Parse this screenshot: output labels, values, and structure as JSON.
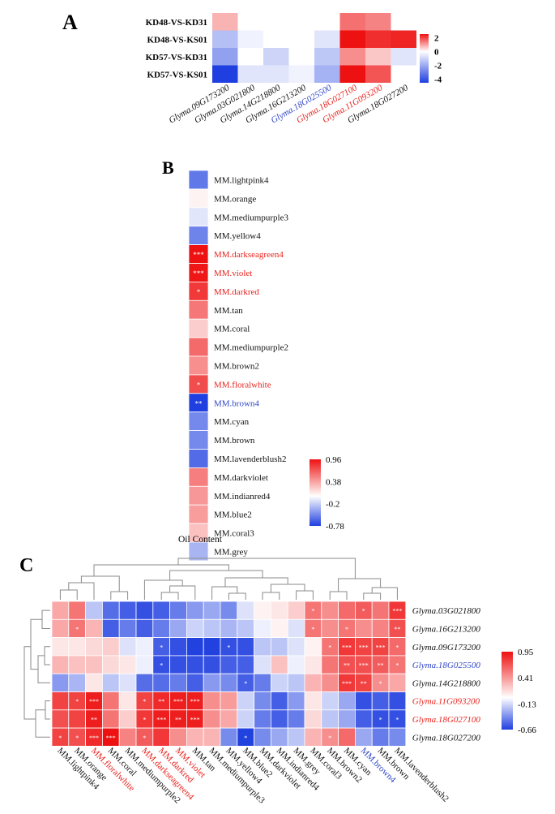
{
  "palette": {
    "low": "#1f3fe0",
    "mid": "#ffffff",
    "high": "#ee1111",
    "text_black": "#111111",
    "text_red": "#e8231d",
    "text_blue": "#2f46c8",
    "sig_mark": "#ffffff",
    "tree": "#8a8a8a",
    "grid": "#ffffff"
  },
  "panel_a": {
    "letter": "A",
    "rows": [
      "KD48-VS-KD31",
      "KD48-VS-KS01",
      "KD57-VS-KD31",
      "KD57-VS-KS01"
    ],
    "cols": [
      {
        "label": "Glyma.09G173200",
        "color": "black"
      },
      {
        "label": "Glyma.03G021800",
        "color": "black"
      },
      {
        "label": "Glyma.14G218800",
        "color": "black"
      },
      {
        "label": "Glyma.16G213200",
        "color": "black"
      },
      {
        "label": "Glyma.18G025500",
        "color": "blue"
      },
      {
        "label": "Glyma.18G027100",
        "color": "red"
      },
      {
        "label": "Glyma.11G093200",
        "color": "red"
      },
      {
        "label": "Glyma.18G027200",
        "color": "black"
      }
    ],
    "values": [
      [
        0.8,
        0.0,
        0.0,
        0.0,
        0.0,
        1.5,
        1.3,
        0.0
      ],
      [
        -1.5,
        -0.3,
        0.0,
        0.0,
        -0.6,
        2.7,
        2.2,
        2.3
      ],
      [
        -2.2,
        0.0,
        -1.0,
        0.0,
        -1.3,
        1.2,
        0.6,
        -0.6
      ],
      [
        -4.5,
        -0.6,
        -0.6,
        -0.3,
        -1.8,
        2.8,
        1.8,
        0.0
      ]
    ],
    "scale": {
      "min": -4.5,
      "max": 2.5,
      "ticks": [
        "2",
        "0",
        "-2",
        "-4"
      ],
      "tick_values": [
        2,
        0,
        -2,
        -4
      ]
    }
  },
  "panel_b": {
    "letter": "B",
    "rows": [
      {
        "label": "MM.lightpink4",
        "value": -0.55,
        "sig": "",
        "color": "black"
      },
      {
        "label": "MM.orange",
        "value": 0.05,
        "sig": "",
        "color": "black"
      },
      {
        "label": "MM.mediumpurple3",
        "value": -0.1,
        "sig": "",
        "color": "black"
      },
      {
        "label": "MM.yellow4",
        "value": -0.5,
        "sig": "",
        "color": "black"
      },
      {
        "label": "MM.darkseagreen4",
        "value": 0.96,
        "sig": "***",
        "color": "red"
      },
      {
        "label": "MM.violet",
        "value": 0.94,
        "sig": "***",
        "color": "red"
      },
      {
        "label": "MM.darkred",
        "value": 0.8,
        "sig": "*",
        "color": "red"
      },
      {
        "label": "MM.tan",
        "value": 0.55,
        "sig": "",
        "color": "black"
      },
      {
        "label": "MM.coral",
        "value": 0.2,
        "sig": "",
        "color": "black"
      },
      {
        "label": "MM.mediumpurple2",
        "value": 0.6,
        "sig": "",
        "color": "black"
      },
      {
        "label": "MM.brown2",
        "value": 0.45,
        "sig": "",
        "color": "black"
      },
      {
        "label": "MM.floralwhite",
        "value": 0.72,
        "sig": "*",
        "color": "red"
      },
      {
        "label": "MM.brown4",
        "value": -0.78,
        "sig": "**",
        "color": "blue"
      },
      {
        "label": "MM.cyan",
        "value": -0.48,
        "sig": "",
        "color": "black"
      },
      {
        "label": "MM.brown",
        "value": -0.48,
        "sig": "",
        "color": "black"
      },
      {
        "label": "MM.lavenderblush2",
        "value": -0.6,
        "sig": "",
        "color": "black"
      },
      {
        "label": "MM.darkviolet",
        "value": 0.52,
        "sig": "",
        "color": "black"
      },
      {
        "label": "MM.indianred4",
        "value": 0.42,
        "sig": "",
        "color": "black"
      },
      {
        "label": "MM.blue2",
        "value": 0.4,
        "sig": "",
        "color": "black"
      },
      {
        "label": "MM.coral3",
        "value": 0.25,
        "sig": "",
        "color": "black"
      },
      {
        "label": "MM.grey",
        "value": -0.3,
        "sig": "",
        "color": "black"
      }
    ],
    "xlabel": "Oil Content",
    "scale": {
      "min": -0.78,
      "max": 0.96,
      "ticks": [
        "0.96",
        "0.38",
        "-0.2",
        "-0.78"
      ],
      "tick_values": [
        0.96,
        0.38,
        -0.2,
        -0.78
      ]
    }
  },
  "panel_c": {
    "letter": "C",
    "rows": [
      {
        "label": "Glyma.03G021800",
        "color": "black"
      },
      {
        "label": "Glyma.16G213200",
        "color": "black"
      },
      {
        "label": "Glyma.09G173200",
        "color": "black"
      },
      {
        "label": "Glyma.18G025500",
        "color": "blue"
      },
      {
        "label": "Glyma.14G218800",
        "color": "black"
      },
      {
        "label": "Glyma.11G093200",
        "color": "red"
      },
      {
        "label": "Glyma.18G027100",
        "color": "red"
      },
      {
        "label": "Glyma.18G027200",
        "color": "black"
      }
    ],
    "cols": [
      {
        "label": "MM.lightpink4",
        "color": "black"
      },
      {
        "label": "MM.orange",
        "color": "black"
      },
      {
        "label": "MM.floralwhite",
        "color": "red"
      },
      {
        "label": "MM.coral",
        "color": "black"
      },
      {
        "label": "MM.mediumpurple2",
        "color": "black"
      },
      {
        "label": "MM.darkseagreen4",
        "color": "red"
      },
      {
        "label": "MM.darkred",
        "color": "red"
      },
      {
        "label": "MM.violet",
        "color": "red"
      },
      {
        "label": "MM.tan",
        "color": "black"
      },
      {
        "label": "MM.mediumpurple3",
        "color": "black"
      },
      {
        "label": "MM.yellow4",
        "color": "black"
      },
      {
        "label": "MM.blue2",
        "color": "black"
      },
      {
        "label": "MM.darkviolet",
        "color": "black"
      },
      {
        "label": "MM.indianred4",
        "color": "black"
      },
      {
        "label": "MM.grey",
        "color": "black"
      },
      {
        "label": "MM.coral3",
        "color": "black"
      },
      {
        "label": "MM.brown2",
        "color": "black"
      },
      {
        "label": "MM.cyan",
        "color": "black"
      },
      {
        "label": "MM.brown4",
        "color": "blue"
      },
      {
        "label": "MM.brown",
        "color": "black"
      },
      {
        "label": "MM.lavenderblush2",
        "color": "black"
      }
    ],
    "values": [
      [
        0.35,
        0.55,
        -0.2,
        -0.5,
        -0.55,
        -0.6,
        -0.55,
        -0.45,
        -0.35,
        -0.3,
        -0.4,
        -0.1,
        0.05,
        0.1,
        0.2,
        0.55,
        0.45,
        0.6,
        0.65,
        0.55,
        0.8
      ],
      [
        0.35,
        0.55,
        0.3,
        -0.55,
        -0.45,
        -0.55,
        -0.45,
        -0.3,
        -0.15,
        -0.2,
        -0.25,
        -0.2,
        -0.05,
        0.05,
        -0.1,
        0.55,
        0.45,
        0.55,
        0.45,
        0.5,
        0.7
      ],
      [
        0.1,
        0.1,
        0.15,
        0.2,
        -0.1,
        -0.05,
        -0.55,
        -0.6,
        -0.65,
        -0.65,
        -0.6,
        -0.6,
        -0.2,
        -0.2,
        -0.1,
        0.05,
        0.55,
        0.8,
        0.75,
        0.75,
        0.6
      ],
      [
        0.3,
        0.25,
        0.25,
        0.15,
        0.1,
        -0.05,
        -0.6,
        -0.6,
        -0.6,
        -0.6,
        -0.55,
        -0.55,
        -0.1,
        0.25,
        -0.05,
        0.1,
        0.55,
        0.7,
        0.7,
        0.65,
        0.55
      ],
      [
        -0.35,
        -0.25,
        0.1,
        -0.2,
        -0.1,
        -0.5,
        -0.5,
        -0.45,
        -0.55,
        -0.35,
        -0.4,
        -0.55,
        -0.45,
        -0.15,
        -0.2,
        0.3,
        0.45,
        0.8,
        0.75,
        0.45,
        0.35
      ],
      [
        0.75,
        0.75,
        0.9,
        0.55,
        0.1,
        0.75,
        0.85,
        0.9,
        0.9,
        0.45,
        0.4,
        -0.15,
        -0.4,
        -0.55,
        -0.35,
        0.1,
        -0.15,
        -0.3,
        -0.6,
        -0.55,
        -0.6
      ],
      [
        0.7,
        0.75,
        0.9,
        0.55,
        0.2,
        0.8,
        0.9,
        0.9,
        0.9,
        0.45,
        0.35,
        -0.15,
        -0.45,
        -0.55,
        -0.45,
        0.15,
        -0.2,
        -0.3,
        -0.55,
        -0.6,
        -0.6
      ],
      [
        0.75,
        0.7,
        0.85,
        0.95,
        0.5,
        0.65,
        0.8,
        0.45,
        0.3,
        0.3,
        -0.4,
        -0.65,
        -0.4,
        -0.3,
        -0.2,
        0.3,
        0.45,
        0.6,
        -0.3,
        -0.45,
        -0.4
      ]
    ],
    "sig": [
      [
        "",
        "",
        "",
        "",
        "",
        "",
        "",
        "",
        "",
        "",
        "",
        "",
        "",
        "",
        "",
        "*",
        "",
        "",
        "*",
        "",
        "***"
      ],
      [
        "",
        "*",
        "",
        "",
        "",
        "",
        "",
        "",
        "",
        "",
        "",
        "",
        "",
        "",
        "",
        "*",
        "",
        "*",
        "",
        "",
        "**"
      ],
      [
        "",
        "",
        "",
        "",
        "",
        "",
        "*",
        "",
        "",
        "",
        "*",
        "",
        "",
        "",
        "",
        "",
        "*",
        "***",
        "***",
        "***",
        "*"
      ],
      [
        "",
        "",
        "",
        "",
        "",
        "",
        "*",
        "",
        "",
        "",
        "",
        "",
        "",
        "",
        "",
        "",
        "",
        "**",
        "***",
        "**",
        "*"
      ],
      [
        "",
        "",
        "",
        "",
        "",
        "",
        "",
        "",
        "",
        "",
        "",
        "*",
        "",
        "",
        "",
        "",
        "",
        "***",
        "**",
        "*",
        ""
      ],
      [
        "",
        "*",
        "***",
        "",
        "",
        "*",
        "**",
        "***",
        "***",
        "",
        "",
        "",
        "",
        "",
        "",
        "",
        "",
        "",
        "",
        "",
        ""
      ],
      [
        "",
        "",
        "**",
        "",
        "",
        "*",
        "***",
        "**",
        "***",
        "",
        "",
        "",
        "",
        "",
        "",
        "",
        "",
        "",
        "",
        "*",
        "*"
      ],
      [
        "*",
        "*",
        "***",
        "***",
        "",
        "*",
        "",
        "",
        "",
        "",
        "",
        "*",
        "",
        "",
        "",
        "",
        "*",
        "",
        "",
        "",
        ""
      ]
    ],
    "scale": {
      "min": -0.66,
      "max": 0.95,
      "ticks": [
        "0.95",
        "0.41",
        "-0.13",
        "-0.66"
      ],
      "tick_values": [
        0.95,
        0.41,
        -0.13,
        -0.66
      ]
    }
  }
}
